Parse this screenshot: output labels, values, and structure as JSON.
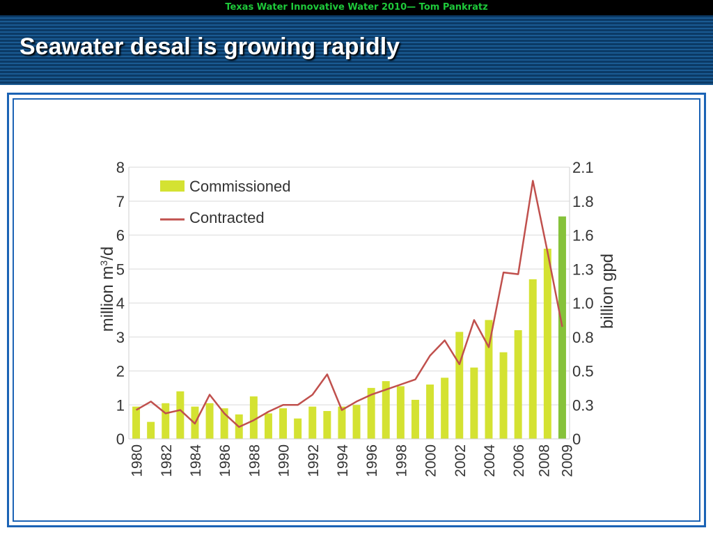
{
  "header": {
    "top_bar_text": "Texas Water Innovative Water 2010— Tom Pankratz",
    "title": "Seawater desal is growing rapidly"
  },
  "colors": {
    "commissioned": "#d4e232",
    "commissioned_2009": "#86c23a",
    "contracted": "#c0504d",
    "grid": "#e6e6e6",
    "frame": "#1b63b5"
  },
  "chart_data": {
    "type": "bar",
    "x": [
      "1980",
      "1981",
      "1982",
      "1983",
      "1984",
      "1985",
      "1986",
      "1987",
      "1988",
      "1989",
      "1990",
      "1991",
      "1992",
      "1993",
      "1994",
      "1995",
      "1996",
      "1997",
      "1998",
      "1999",
      "2000",
      "2001",
      "2002",
      "2003",
      "2004",
      "2005",
      "2006",
      "2007",
      "2008",
      "2009"
    ],
    "x_tick_labels": [
      "1980",
      "1982",
      "1984",
      "1986",
      "1988",
      "1990",
      "1992",
      "1994",
      "1996",
      "1998",
      "2000",
      "2002",
      "2004",
      "2006",
      "2008",
      "2009"
    ],
    "series": [
      {
        "name": "Commissioned",
        "type": "bar",
        "values": [
          0.95,
          0.5,
          1.05,
          1.4,
          0.95,
          1.05,
          0.9,
          0.72,
          1.25,
          0.75,
          0.9,
          0.6,
          0.95,
          0.82,
          0.95,
          1.0,
          1.5,
          1.7,
          1.55,
          1.15,
          1.6,
          1.8,
          3.15,
          2.1,
          3.5,
          2.55,
          3.2,
          4.7,
          5.6,
          6.55
        ]
      },
      {
        "name": "Contracted",
        "type": "line",
        "values": [
          0.85,
          1.1,
          0.75,
          0.85,
          0.45,
          1.3,
          0.75,
          0.35,
          0.55,
          0.8,
          1.0,
          1.0,
          1.3,
          1.9,
          0.85,
          1.1,
          1.3,
          1.45,
          1.6,
          1.75,
          2.45,
          2.9,
          2.2,
          3.5,
          2.7,
          4.9,
          4.85,
          7.6,
          5.5,
          3.3
        ]
      }
    ],
    "ylabel": "million m³/d",
    "ylabel_parts": {
      "main": "million m",
      "sup": "3",
      "rest": "/d"
    },
    "y2label": "billion gpd",
    "ylim": [
      0,
      8
    ],
    "y_ticks": [
      "0",
      "1",
      "2",
      "3",
      "4",
      "5",
      "6",
      "7",
      "8"
    ],
    "y2_ticks": [
      "0",
      "0.3",
      "0.5",
      "0.8",
      "1.0",
      "1.3",
      "1.6",
      "1.8",
      "2.1"
    ],
    "grid": true,
    "legend": "top-left"
  }
}
